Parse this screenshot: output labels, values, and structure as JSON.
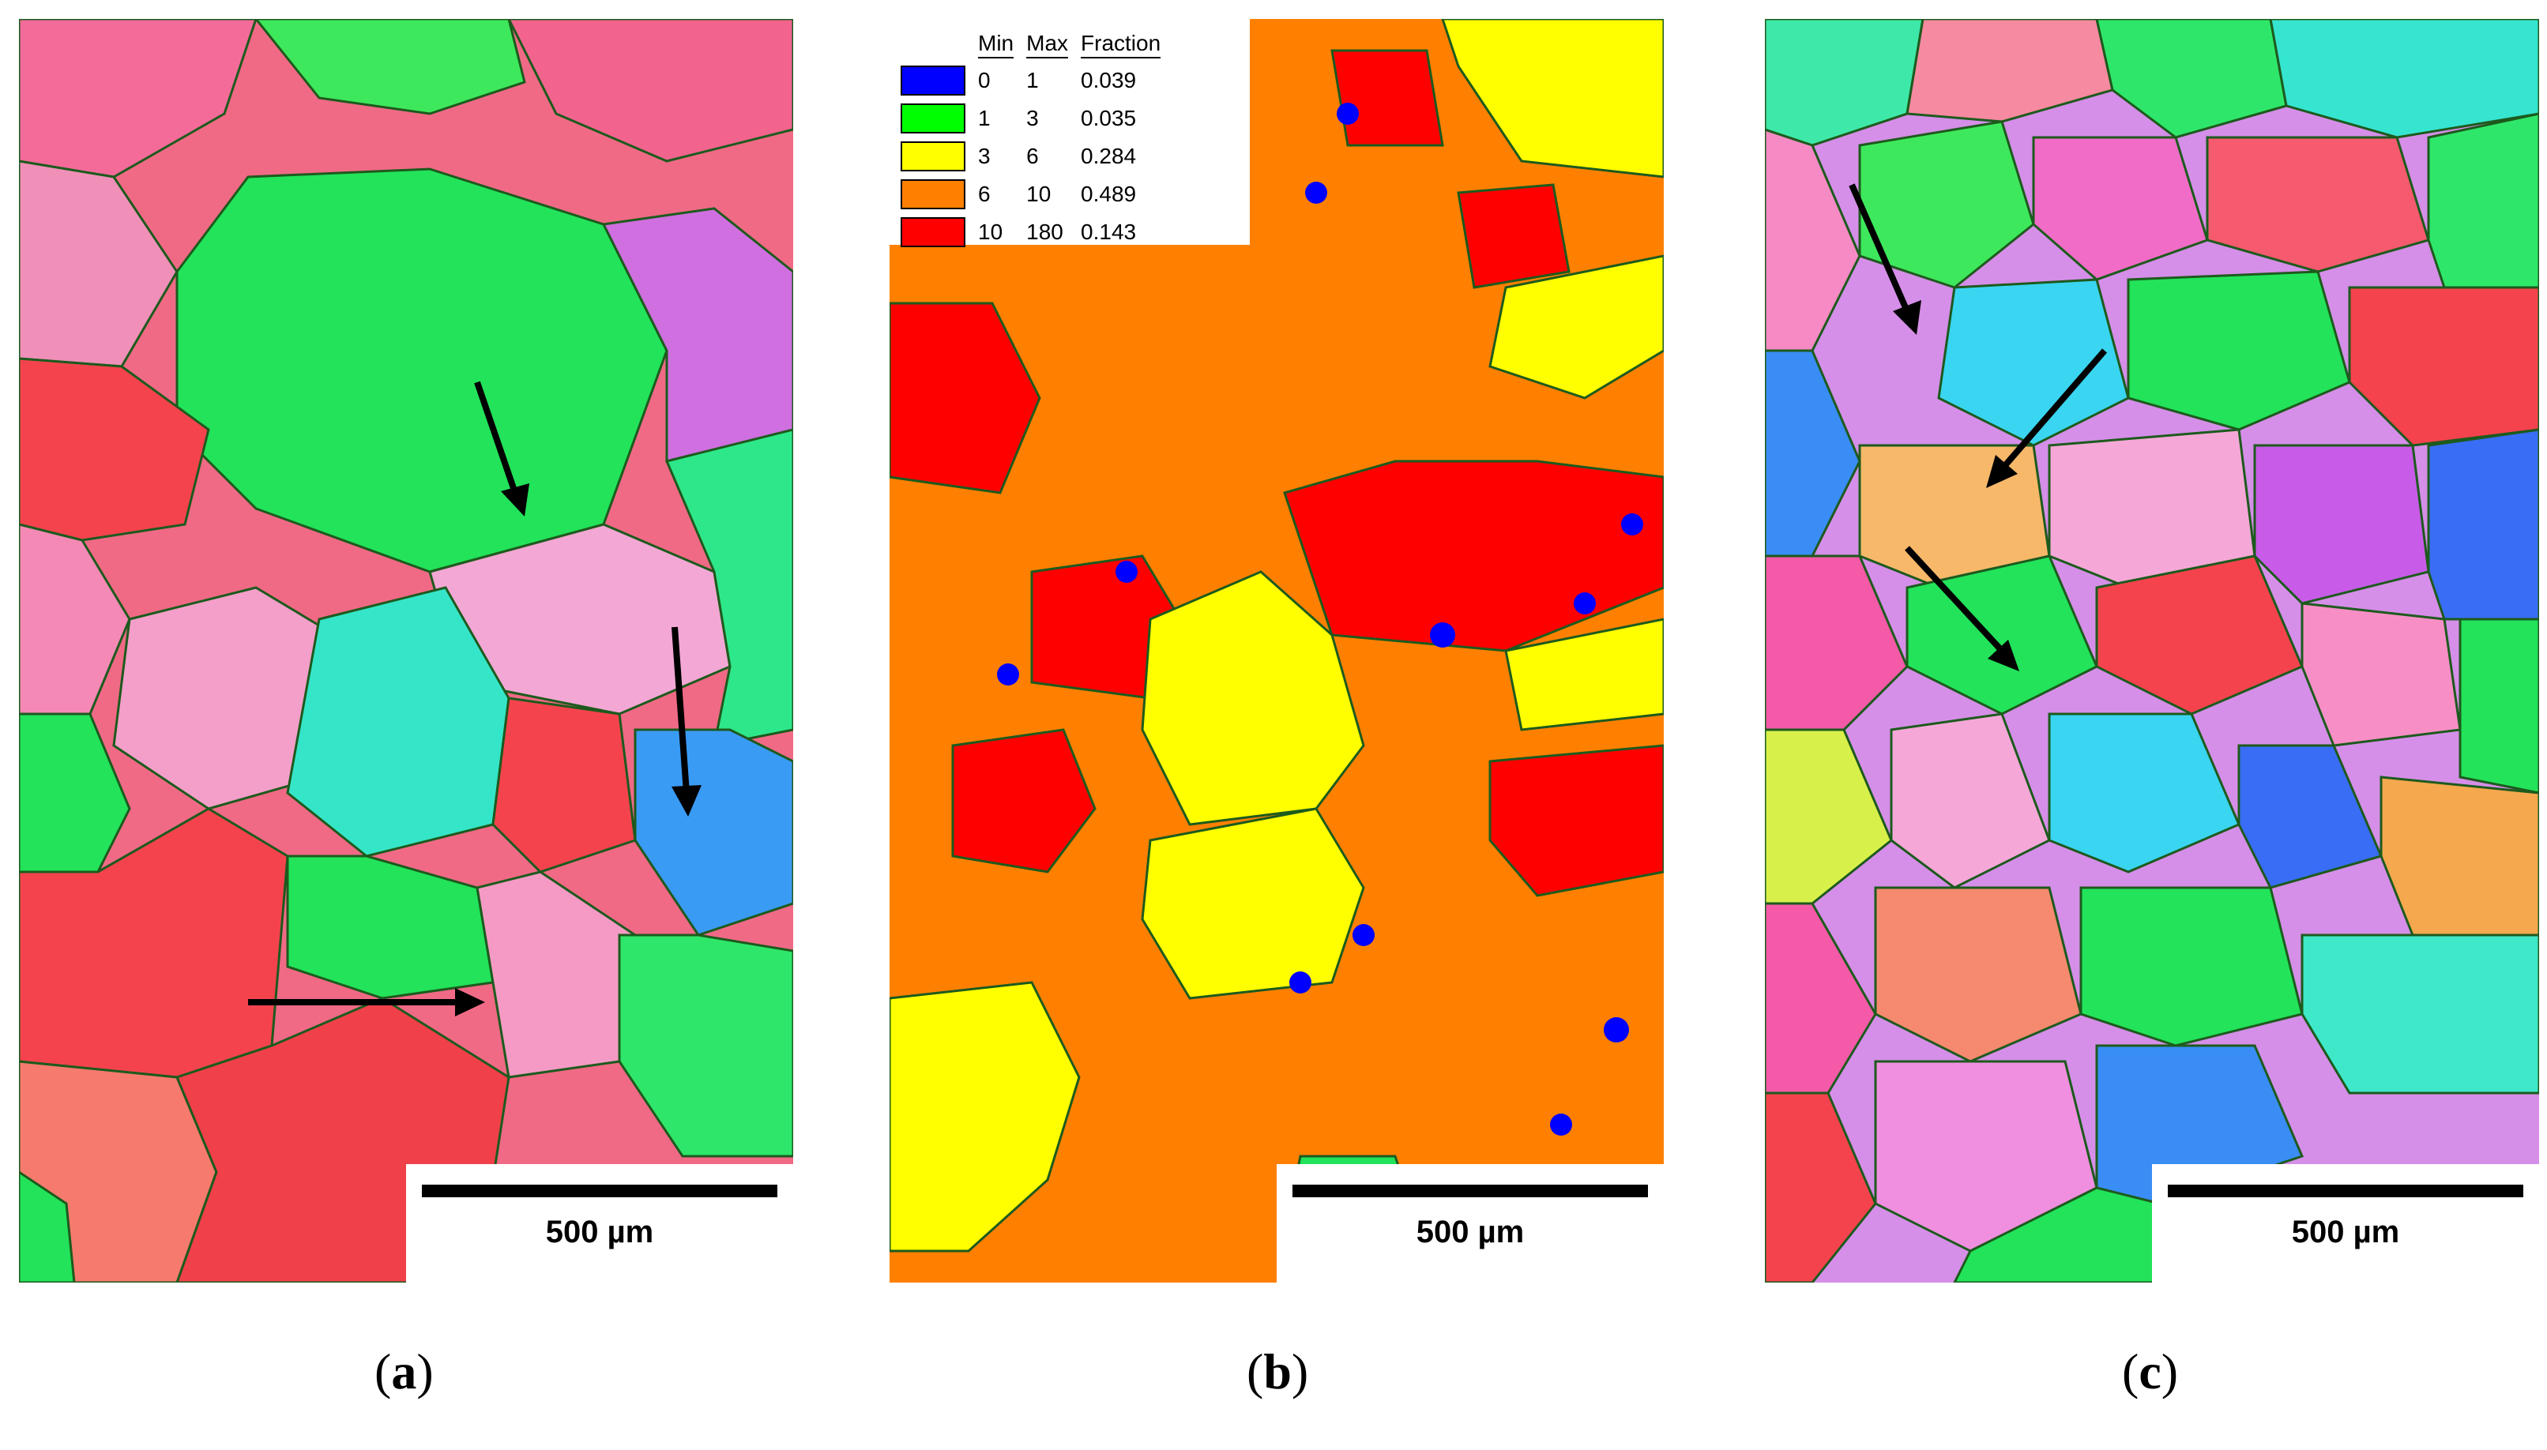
{
  "figure": {
    "panels": [
      {
        "id": "a",
        "caption_letter": "a",
        "scalebar_label": "500 µm"
      },
      {
        "id": "b",
        "caption_letter": "b",
        "scalebar_label": "500 µm"
      },
      {
        "id": "c",
        "caption_letter": "c",
        "scalebar_label": "500 µm"
      }
    ],
    "legend": {
      "headers": {
        "min": "Min",
        "max": "Max",
        "fraction": "Fraction"
      },
      "rows": [
        {
          "min": "0",
          "max": "1",
          "fraction": "0.039",
          "color": "#0000ff"
        },
        {
          "min": "1",
          "max": "3",
          "fraction": "0.035",
          "color": "#00ff00"
        },
        {
          "min": "3",
          "max": "6",
          "fraction": "0.284",
          "color": "#ffff00"
        },
        {
          "min": "6",
          "max": "10",
          "fraction": "0.489",
          "color": "#ff8000"
        },
        {
          "min": "10",
          "max": "180",
          "fraction": "0.143",
          "color": "#ff0000"
        }
      ]
    },
    "colors": {
      "ipf_green": "#22e35a",
      "ipf_red": "#f5434e",
      "ipf_pink": "#f78fc6",
      "ipf_magenta": "#d65ee8",
      "ipf_blue": "#3a8df5",
      "ipf_cyan": "#35e5d0",
      "ipf_yellow": "#d8f04a",
      "boundary": "#1d5a1d",
      "arrow": "#000000"
    }
  }
}
